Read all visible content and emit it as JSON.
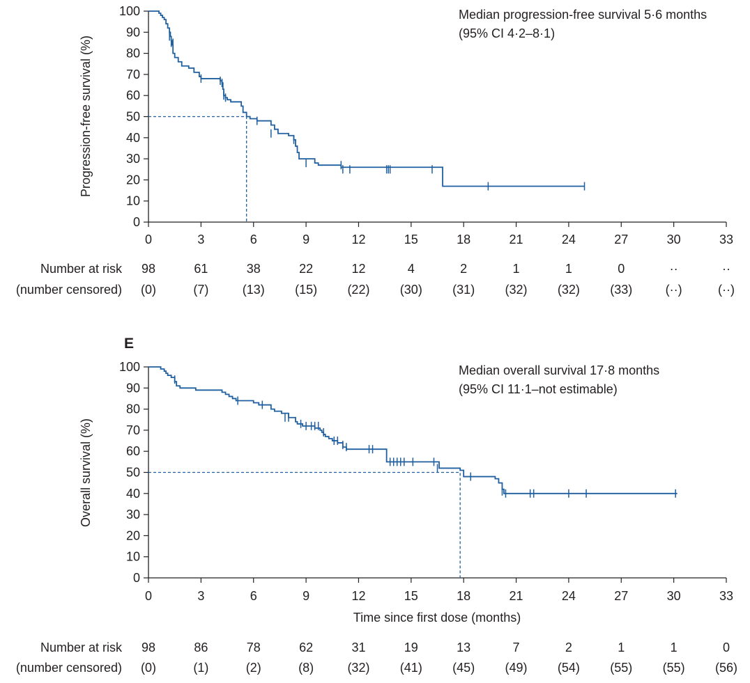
{
  "colors": {
    "curve": "#1f5f9f",
    "axis": "#231f20",
    "text": "#231f20"
  },
  "risk_labels": {
    "at_risk": "Number at risk",
    "censored": "(number censored)"
  },
  "chart_data": [
    {
      "type": "line",
      "panel_label": "",
      "title": "",
      "xlabel": "",
      "ylabel": "Progression-free survival (%)",
      "xlim": [
        0,
        33
      ],
      "ylim": [
        0,
        100
      ],
      "xticks": [
        "0",
        "3",
        "6",
        "9",
        "12",
        "15",
        "18",
        "21",
        "24",
        "27",
        "30",
        "33"
      ],
      "yticks": [
        "0",
        "10",
        "20",
        "30",
        "40",
        "50",
        "60",
        "70",
        "80",
        "90",
        "100"
      ],
      "grid": false,
      "annotation": [
        "Median progression-free survival 5·6 months",
        "(95% CI 4·2–8·1)"
      ],
      "median": 5.6,
      "series": [
        {
          "step_points": [
            [
              0,
              100
            ],
            [
              0.5,
              100
            ],
            [
              0.6,
              99
            ],
            [
              0.7,
              98
            ],
            [
              0.8,
              97
            ],
            [
              0.9,
              96
            ],
            [
              1.0,
              94
            ],
            [
              1.1,
              92
            ],
            [
              1.2,
              90
            ],
            [
              1.25,
              88
            ],
            [
              1.3,
              86
            ],
            [
              1.35,
              84
            ],
            [
              1.4,
              80
            ],
            [
              1.5,
              78
            ],
            [
              1.7,
              76
            ],
            [
              1.9,
              74
            ],
            [
              2.3,
              73
            ],
            [
              2.6,
              71
            ],
            [
              2.9,
              69
            ],
            [
              3.0,
              68
            ],
            [
              4.1,
              67
            ],
            [
              4.2,
              66
            ],
            [
              4.25,
              63
            ],
            [
              4.3,
              60
            ],
            [
              4.4,
              59
            ],
            [
              4.5,
              58
            ],
            [
              4.7,
              57
            ],
            [
              5.3,
              55
            ],
            [
              5.4,
              52
            ],
            [
              5.6,
              50
            ],
            [
              5.8,
              49
            ],
            [
              6.2,
              48
            ],
            [
              7.0,
              46
            ],
            [
              7.2,
              44
            ],
            [
              7.4,
              42
            ],
            [
              8.0,
              41
            ],
            [
              8.3,
              39
            ],
            [
              8.4,
              36
            ],
            [
              8.5,
              33
            ],
            [
              8.6,
              30
            ],
            [
              9.5,
              28
            ],
            [
              9.7,
              27
            ],
            [
              11.0,
              26
            ],
            [
              16.8,
              17
            ],
            [
              24.9,
              17
            ]
          ],
          "censor_marks": [
            [
              1.2,
              88
            ],
            [
              1.3,
              85
            ],
            [
              1.4,
              85
            ],
            [
              3.0,
              68
            ],
            [
              4.1,
              67
            ],
            [
              4.2,
              66
            ],
            [
              4.3,
              60
            ],
            [
              4.4,
              59
            ],
            [
              6.2,
              48
            ],
            [
              7.0,
              42
            ],
            [
              8.3,
              39
            ],
            [
              9.0,
              28
            ],
            [
              11.0,
              27
            ],
            [
              11.1,
              25
            ],
            [
              11.5,
              25
            ],
            [
              13.6,
              25
            ],
            [
              13.7,
              25
            ],
            [
              13.8,
              25
            ],
            [
              16.2,
              25
            ],
            [
              19.4,
              17
            ],
            [
              24.9,
              17
            ]
          ]
        }
      ],
      "risk_table": {
        "at_risk": [
          "98",
          "61",
          "38",
          "22",
          "12",
          "4",
          "2",
          "1",
          "1",
          "0",
          "··",
          "··"
        ],
        "censored": [
          "(0)",
          "(7)",
          "(13)",
          "(15)",
          "(22)",
          "(30)",
          "(31)",
          "(32)",
          "(32)",
          "(33)",
          "(··)",
          "(··)"
        ]
      }
    },
    {
      "type": "line",
      "panel_label": "E",
      "title": "",
      "xlabel": "Time since first dose (months)",
      "ylabel": "Overall survival (%)",
      "xlim": [
        0,
        33
      ],
      "ylim": [
        0,
        100
      ],
      "xticks": [
        "0",
        "3",
        "6",
        "9",
        "12",
        "15",
        "18",
        "21",
        "24",
        "27",
        "30",
        "33"
      ],
      "yticks": [
        "0",
        "10",
        "20",
        "30",
        "40",
        "50",
        "60",
        "70",
        "80",
        "90",
        "100"
      ],
      "grid": false,
      "annotation": [
        "Median overall survival 17·8 months",
        "(95% CI 11·1–not estimable)"
      ],
      "median": 17.8,
      "series": [
        {
          "step_points": [
            [
              0,
              100
            ],
            [
              0.7,
              99
            ],
            [
              0.9,
              98
            ],
            [
              1.0,
              97
            ],
            [
              1.1,
              96
            ],
            [
              1.3,
              95
            ],
            [
              1.5,
              93
            ],
            [
              1.6,
              91
            ],
            [
              1.8,
              90
            ],
            [
              2.7,
              89
            ],
            [
              4.2,
              88
            ],
            [
              4.4,
              87
            ],
            [
              4.6,
              86
            ],
            [
              4.8,
              85
            ],
            [
              5.0,
              84
            ],
            [
              6.0,
              83
            ],
            [
              6.3,
              82
            ],
            [
              7.0,
              80
            ],
            [
              7.2,
              79
            ],
            [
              7.6,
              78
            ],
            [
              8.0,
              76
            ],
            [
              8.4,
              74
            ],
            [
              8.5,
              73
            ],
            [
              8.8,
              72
            ],
            [
              9.5,
              71
            ],
            [
              9.8,
              70
            ],
            [
              9.9,
              69
            ],
            [
              10.0,
              68
            ],
            [
              10.1,
              67
            ],
            [
              10.3,
              66
            ],
            [
              10.5,
              65
            ],
            [
              10.8,
              64
            ],
            [
              11.1,
              62
            ],
            [
              11.3,
              61
            ],
            [
              13.6,
              55
            ],
            [
              14.0,
              55
            ],
            [
              16.6,
              52
            ],
            [
              17.8,
              51
            ],
            [
              18.0,
              48
            ],
            [
              19.8,
              47
            ],
            [
              20.0,
              45
            ],
            [
              20.2,
              42
            ],
            [
              20.3,
              40
            ],
            [
              30.2,
              40
            ]
          ],
          "censor_marks": [
            [
              1.5,
              94
            ],
            [
              5.1,
              84
            ],
            [
              6.5,
              82
            ],
            [
              7.8,
              76
            ],
            [
              8.0,
              76
            ],
            [
              8.7,
              73
            ],
            [
              9.0,
              72
            ],
            [
              9.3,
              72
            ],
            [
              9.5,
              72
            ],
            [
              9.7,
              72
            ],
            [
              10.0,
              69
            ],
            [
              10.6,
              65
            ],
            [
              10.8,
              65
            ],
            [
              11.1,
              63
            ],
            [
              11.3,
              62
            ],
            [
              12.6,
              61
            ],
            [
              12.8,
              61
            ],
            [
              13.8,
              55
            ],
            [
              14.0,
              55
            ],
            [
              14.2,
              55
            ],
            [
              14.4,
              55
            ],
            [
              14.6,
              55
            ],
            [
              15.1,
              55
            ],
            [
              16.3,
              55
            ],
            [
              16.5,
              52
            ],
            [
              18.4,
              48
            ],
            [
              20.2,
              41
            ],
            [
              20.4,
              40
            ],
            [
              21.8,
              40
            ],
            [
              22.0,
              40
            ],
            [
              24.0,
              40
            ],
            [
              25.0,
              40
            ],
            [
              30.1,
              40
            ]
          ]
        }
      ],
      "risk_table": {
        "at_risk": [
          "98",
          "86",
          "78",
          "62",
          "31",
          "19",
          "13",
          "7",
          "2",
          "1",
          "1",
          "0"
        ],
        "censored": [
          "(0)",
          "(1)",
          "(2)",
          "(8)",
          "(32)",
          "(41)",
          "(45)",
          "(49)",
          "(54)",
          "(55)",
          "(55)",
          "(56)"
        ]
      }
    }
  ]
}
